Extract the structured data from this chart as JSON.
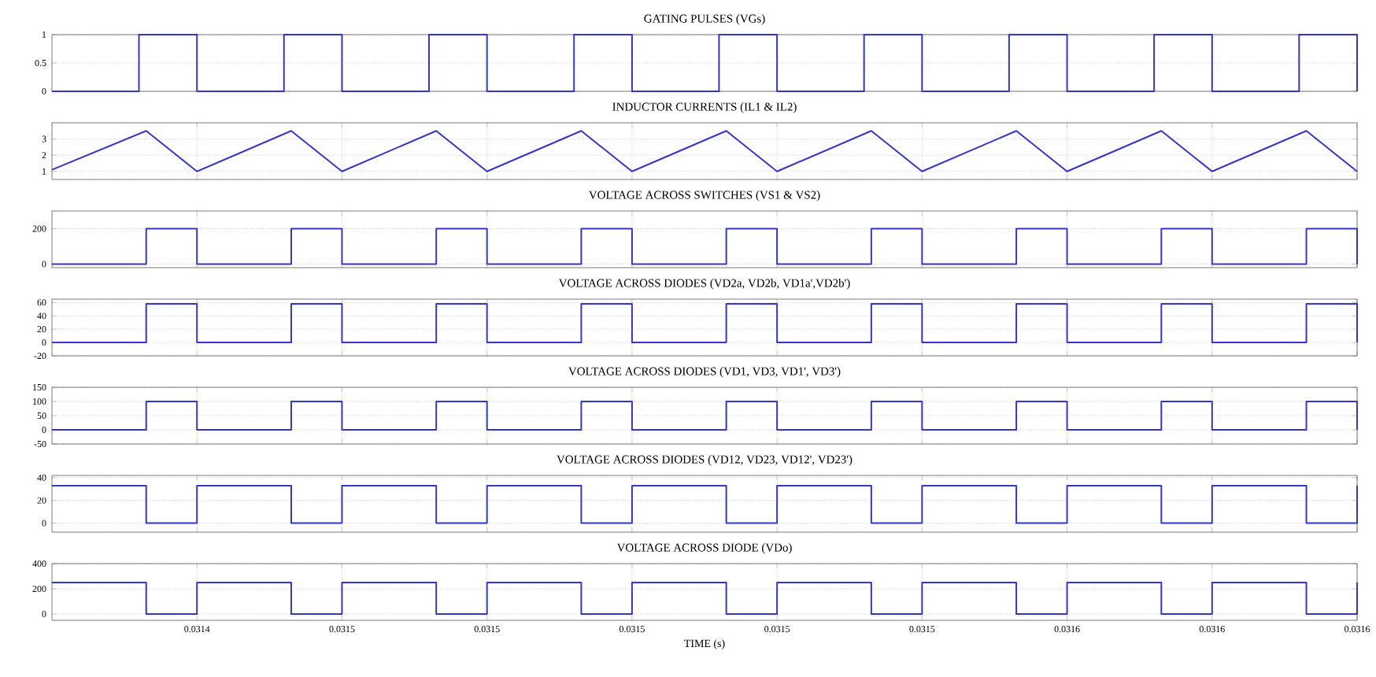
{
  "chart_data": [
    {
      "type": "step",
      "title": "GATING PULSES (VGs)",
      "color": "#3535c8",
      "grid": true,
      "tick_labels": "y",
      "xlim": [
        0.031428,
        0.031608
      ],
      "ylim": [
        0,
        1
      ],
      "yticks": [
        0,
        0.5,
        1
      ],
      "xticks": [
        {
          "value": 0.031448,
          "label": null
        },
        {
          "value": 0.031468,
          "label": null
        },
        {
          "value": 0.031488,
          "label": null
        },
        {
          "value": 0.031508,
          "label": null
        },
        {
          "value": 0.031528,
          "label": null
        },
        {
          "value": 0.031548,
          "label": null
        },
        {
          "value": 0.031568,
          "label": null
        },
        {
          "value": 0.031588,
          "label": null
        },
        {
          "value": 0.031608,
          "label": null
        }
      ],
      "x": [
        0.031428,
        0.03144,
        0.031448,
        0.03146,
        0.031468,
        0.03148,
        0.031488,
        0.0315,
        0.031508,
        0.03152,
        0.031528,
        0.03154,
        0.031548,
        0.03156,
        0.031568,
        0.03158,
        0.031588,
        0.0316,
        0.031608
      ],
      "values": [
        0,
        1,
        0,
        1,
        0,
        1,
        0,
        1,
        0,
        1,
        0,
        1,
        0,
        1,
        0,
        1,
        0,
        1,
        0
      ]
    },
    {
      "type": "line",
      "title": "INDUCTOR CURRENTS (IL1 & IL2)",
      "color": "#3535c8",
      "grid": true,
      "tick_labels": "y",
      "xlim": [
        0.031428,
        0.031608
      ],
      "ylim": [
        0.5,
        4
      ],
      "yticks": [
        1,
        2,
        3
      ],
      "xticks": [
        {
          "value": 0.031448,
          "label": null
        },
        {
          "value": 0.031468,
          "label": null
        },
        {
          "value": 0.031488,
          "label": null
        },
        {
          "value": 0.031508,
          "label": null
        },
        {
          "value": 0.031528,
          "label": null
        },
        {
          "value": 0.031548,
          "label": null
        },
        {
          "value": 0.031568,
          "label": null
        },
        {
          "value": 0.031588,
          "label": null
        },
        {
          "value": 0.031608,
          "label": null
        }
      ],
      "x": [
        0.031428,
        0.031441,
        0.031448,
        0.031461,
        0.031468,
        0.031481,
        0.031488,
        0.031501,
        0.031508,
        0.031521,
        0.031528,
        0.031541,
        0.031548,
        0.031561,
        0.031568,
        0.031581,
        0.031588,
        0.031601,
        0.031608
      ],
      "values": [
        1.1,
        3.5,
        1,
        3.5,
        1,
        3.5,
        1,
        3.5,
        1,
        3.5,
        1,
        3.5,
        1,
        3.5,
        1,
        3.5,
        1,
        3.5,
        1
      ]
    },
    {
      "type": "step",
      "title": "VOLTAGE ACROSS SWITCHES (VS1 & VS2)",
      "color": "#3535c8",
      "grid": true,
      "tick_labels": "y",
      "xlim": [
        0.031428,
        0.031608
      ],
      "ylim": [
        -20,
        300
      ],
      "yticks": [
        0,
        200
      ],
      "xticks": [
        {
          "value": 0.031448,
          "label": null
        },
        {
          "value": 0.031468,
          "label": null
        },
        {
          "value": 0.031488,
          "label": null
        },
        {
          "value": 0.031508,
          "label": null
        },
        {
          "value": 0.031528,
          "label": null
        },
        {
          "value": 0.031548,
          "label": null
        },
        {
          "value": 0.031568,
          "label": null
        },
        {
          "value": 0.031588,
          "label": null
        },
        {
          "value": 0.031608,
          "label": null
        }
      ],
      "x": [
        0.031428,
        0.031441,
        0.031448,
        0.031461,
        0.031468,
        0.031481,
        0.031488,
        0.031501,
        0.031508,
        0.031521,
        0.031528,
        0.031541,
        0.031548,
        0.031561,
        0.031568,
        0.031581,
        0.031588,
        0.031601,
        0.031608
      ],
      "values": [
        0,
        200,
        0,
        200,
        0,
        200,
        0,
        200,
        0,
        200,
        0,
        200,
        0,
        200,
        0,
        200,
        0,
        200,
        0
      ]
    },
    {
      "type": "step",
      "title": "VOLTAGE ACROSS DIODES (VD2a, VD2b, VD1a',VD2b')",
      "color": "#3535c8",
      "grid": true,
      "tick_labels": "y",
      "xlim": [
        0.031428,
        0.031608
      ],
      "ylim": [
        -20,
        65
      ],
      "yticks": [
        -20,
        0,
        20,
        40,
        60
      ],
      "xticks": [
        {
          "value": 0.031448,
          "label": null
        },
        {
          "value": 0.031468,
          "label": null
        },
        {
          "value": 0.031488,
          "label": null
        },
        {
          "value": 0.031508,
          "label": null
        },
        {
          "value": 0.031528,
          "label": null
        },
        {
          "value": 0.031548,
          "label": null
        },
        {
          "value": 0.031568,
          "label": null
        },
        {
          "value": 0.031588,
          "label": null
        },
        {
          "value": 0.031608,
          "label": null
        }
      ],
      "x": [
        0.031428,
        0.031441,
        0.031448,
        0.031461,
        0.031468,
        0.031481,
        0.031488,
        0.031501,
        0.031508,
        0.031521,
        0.031528,
        0.031541,
        0.031548,
        0.031561,
        0.031568,
        0.031581,
        0.031588,
        0.031601,
        0.031608
      ],
      "values": [
        0,
        58,
        0,
        58,
        0,
        58,
        0,
        58,
        0,
        58,
        0,
        58,
        0,
        58,
        0,
        58,
        0,
        58,
        0
      ]
    },
    {
      "type": "step",
      "title": "VOLTAGE ACROSS DIODES (VD1, VD3, VD1', VD3')",
      "color": "#3535c8",
      "grid": true,
      "tick_labels": "y",
      "xlim": [
        0.031428,
        0.031608
      ],
      "ylim": [
        -50,
        150
      ],
      "yticks": [
        -50,
        0,
        50,
        100,
        150
      ],
      "xticks": [
        {
          "value": 0.031448,
          "label": null
        },
        {
          "value": 0.031468,
          "label": null
        },
        {
          "value": 0.031488,
          "label": null
        },
        {
          "value": 0.031508,
          "label": null
        },
        {
          "value": 0.031528,
          "label": null
        },
        {
          "value": 0.031548,
          "label": null
        },
        {
          "value": 0.031568,
          "label": null
        },
        {
          "value": 0.031588,
          "label": null
        },
        {
          "value": 0.031608,
          "label": null
        }
      ],
      "x": [
        0.031428,
        0.031441,
        0.031448,
        0.031461,
        0.031468,
        0.031481,
        0.031488,
        0.031501,
        0.031508,
        0.031521,
        0.031528,
        0.031541,
        0.031548,
        0.031561,
        0.031568,
        0.031581,
        0.031588,
        0.031601,
        0.031608
      ],
      "values": [
        0,
        100,
        0,
        100,
        0,
        100,
        0,
        100,
        0,
        100,
        0,
        100,
        0,
        100,
        0,
        100,
        0,
        100,
        0
      ]
    },
    {
      "type": "step",
      "title": "VOLTAGE ACROSS DIODES (VD12, VD23, VD12', VD23')",
      "color": "#3535c8",
      "grid": true,
      "tick_labels": "y",
      "xlim": [
        0.031428,
        0.031608
      ],
      "ylim": [
        -8,
        42
      ],
      "yticks": [
        0,
        20,
        40
      ],
      "xticks": [
        {
          "value": 0.031448,
          "label": null
        },
        {
          "value": 0.031468,
          "label": null
        },
        {
          "value": 0.031488,
          "label": null
        },
        {
          "value": 0.031508,
          "label": null
        },
        {
          "value": 0.031528,
          "label": null
        },
        {
          "value": 0.031548,
          "label": null
        },
        {
          "value": 0.031568,
          "label": null
        },
        {
          "value": 0.031588,
          "label": null
        },
        {
          "value": 0.031608,
          "label": null
        }
      ],
      "x": [
        0.031428,
        0.031441,
        0.031448,
        0.031461,
        0.031468,
        0.031481,
        0.031488,
        0.031501,
        0.031508,
        0.031521,
        0.031528,
        0.031541,
        0.031548,
        0.031561,
        0.031568,
        0.031581,
        0.031588,
        0.031601,
        0.031608
      ],
      "values": [
        33,
        0,
        33,
        0,
        33,
        0,
        33,
        0,
        33,
        0,
        33,
        0,
        33,
        0,
        33,
        0,
        33,
        0,
        33
      ]
    },
    {
      "type": "step",
      "title": "VOLTAGE ACROSS DIODE (VDo)",
      "xlabel": "TIME (s)",
      "color": "#3535c8",
      "grid": true,
      "xlim": [
        0.031428,
        0.031608
      ],
      "ylim": [
        -50,
        400
      ],
      "yticks": [
        0,
        200,
        400
      ],
      "xticks": [
        {
          "value": 0.031448,
          "label": "0.0314"
        },
        {
          "value": 0.031468,
          "label": "0.0315"
        },
        {
          "value": 0.031488,
          "label": "0.0315"
        },
        {
          "value": 0.031508,
          "label": "0.0315"
        },
        {
          "value": 0.031528,
          "label": "0.0315"
        },
        {
          "value": 0.031548,
          "label": "0.0315"
        },
        {
          "value": 0.031568,
          "label": "0.0316"
        },
        {
          "value": 0.031588,
          "label": "0.0316"
        },
        {
          "value": 0.031608,
          "label": "0.0316"
        }
      ],
      "x": [
        0.031428,
        0.031441,
        0.031448,
        0.031461,
        0.031468,
        0.031481,
        0.031488,
        0.031501,
        0.031508,
        0.031521,
        0.031528,
        0.031541,
        0.031548,
        0.031561,
        0.031568,
        0.031581,
        0.031588,
        0.031601,
        0.031608
      ],
      "values": [
        250,
        0,
        250,
        0,
        250,
        0,
        250,
        0,
        250,
        0,
        250,
        0,
        250,
        0,
        250,
        0,
        250,
        0,
        250
      ]
    }
  ]
}
